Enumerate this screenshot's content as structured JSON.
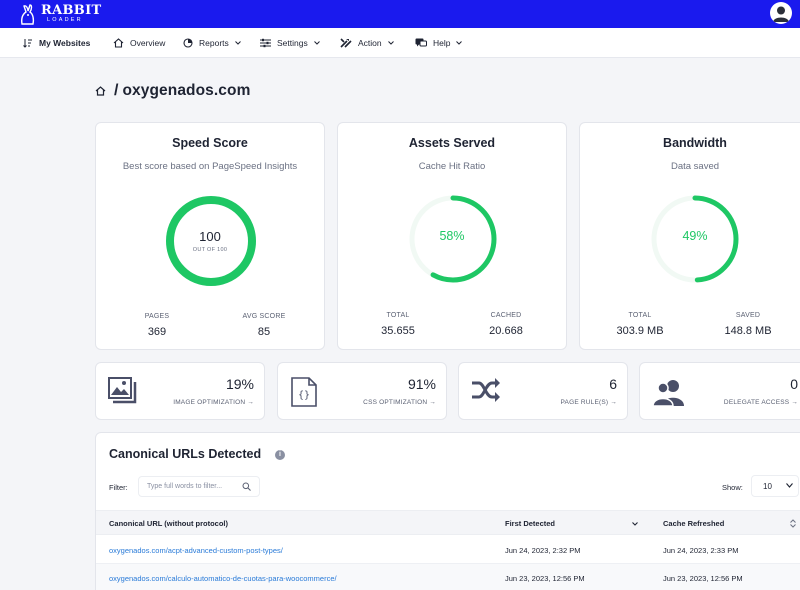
{
  "brand": {
    "line1": "RABBIT",
    "line2": "LOADER"
  },
  "nav": [
    {
      "label": "My Websites",
      "icon": "sort-icon"
    },
    {
      "label": "Overview",
      "icon": "home-icon"
    },
    {
      "label": "Reports",
      "icon": "pie-chart-icon"
    },
    {
      "label": "Settings",
      "icon": "sliders-icon"
    },
    {
      "label": "Action",
      "icon": "tools-icon"
    },
    {
      "label": "Help",
      "icon": "chat-icon"
    }
  ],
  "breadcrumb": {
    "separator": "/",
    "site": "oxygenados.com"
  },
  "cards": [
    {
      "title": "Speed Score",
      "subtitle": "Best score based on PageSpeed Insights",
      "value": "100",
      "value_caption": "OUT OF 100",
      "fraction": 1.0,
      "left_label": "PAGES",
      "left_value": "369",
      "right_label": "AVG SCORE",
      "right_value": "85"
    },
    {
      "title": "Assets Served",
      "subtitle": "Cache Hit Ratio",
      "value": "58%",
      "fraction": 0.58,
      "left_label": "TOTAL",
      "left_value": "35.655",
      "right_label": "CACHED",
      "right_value": "20.668"
    },
    {
      "title": "Bandwidth",
      "subtitle": "Data saved",
      "value": "49%",
      "fraction": 0.49,
      "left_label": "TOTAL",
      "left_value": "303.9 MB",
      "right_label": "SAVED",
      "right_value": "148.8 MB"
    }
  ],
  "minis": [
    {
      "value": "19%",
      "label": "IMAGE OPTIMIZATION →",
      "icon": "image-gallery-icon"
    },
    {
      "value": "91%",
      "label": "CSS OPTIMIZATION →",
      "icon": "css-file-icon"
    },
    {
      "value": "6",
      "label": "PAGE RULE(S) →",
      "icon": "shuffle-icon"
    },
    {
      "value": "0",
      "label": "DELEGATE ACCESS →",
      "icon": "users-icon"
    }
  ],
  "canonical": {
    "title": "Canonical URLs Detected",
    "filter_label": "Filter:",
    "filter_placeholder": "Type full words to filter...",
    "show_label": "Show:",
    "show_value": "10",
    "columns": [
      "Canonical URL (without protocol)",
      "First Detected",
      "Cache Refreshed"
    ],
    "rows": [
      {
        "url": "oxygenados.com/acpt-advanced-custom-post-types/",
        "first": "Jun 24, 2023, 2:32 PM",
        "refreshed": "Jun 24, 2023, 2:33 PM"
      },
      {
        "url": "oxygenados.com/calculo-automatico-de-cuotas-para-woocommerce/",
        "first": "Jun 23, 2023, 12:56 PM",
        "refreshed": "Jun 23, 2023, 12:56 PM"
      }
    ]
  },
  "colors": {
    "topbar": "#1a1aee",
    "ring": "#1ec764",
    "link": "#2a7bd8"
  }
}
